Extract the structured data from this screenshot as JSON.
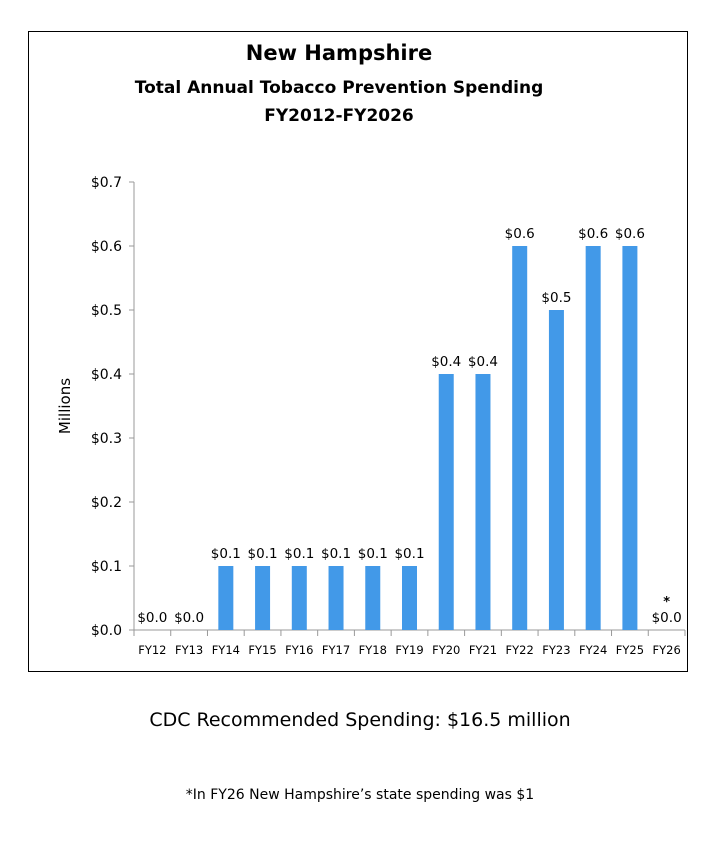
{
  "chart_data": {
    "type": "bar",
    "title": [
      "New Hampshire",
      "Total Annual Tobacco Prevention Spending",
      "FY2012-FY2026"
    ],
    "ylabel": "Millions",
    "xlabel": "",
    "categories": [
      "FY12",
      "FY13",
      "FY14",
      "FY15",
      "FY16",
      "FY17",
      "FY18",
      "FY19",
      "FY20",
      "FY21",
      "FY22",
      "FY23",
      "FY24",
      "FY25",
      "FY26"
    ],
    "values": [
      0,
      0,
      0.1,
      0.1,
      0.1,
      0.1,
      0.1,
      0.1,
      0.4,
      0.4,
      0.6,
      0.5,
      0.6,
      0.6,
      0
    ],
    "data_labels": [
      "$0.0",
      "$0.0",
      "$0.1",
      "$0.1",
      "$0.1",
      "$0.1",
      "$0.1",
      "$0.1",
      "$0.4",
      "$0.4",
      "$0.6",
      "$0.5",
      "$0.6",
      "$0.6",
      "$0.0"
    ],
    "annotations": [
      {
        "category": "FY26",
        "text": "*"
      }
    ],
    "yticks": [
      "$0.0",
      "$0.1",
      "$0.2",
      "$0.3",
      "$0.4",
      "$0.5",
      "$0.6",
      "$0.7"
    ],
    "ylim": [
      0,
      0.7
    ],
    "grid": false,
    "bar_color": "#4299e8"
  },
  "recommended": "CDC Recommended Spending: $16.5 million",
  "footnote": "*In FY26 New Hampshire’s state spending was $1"
}
